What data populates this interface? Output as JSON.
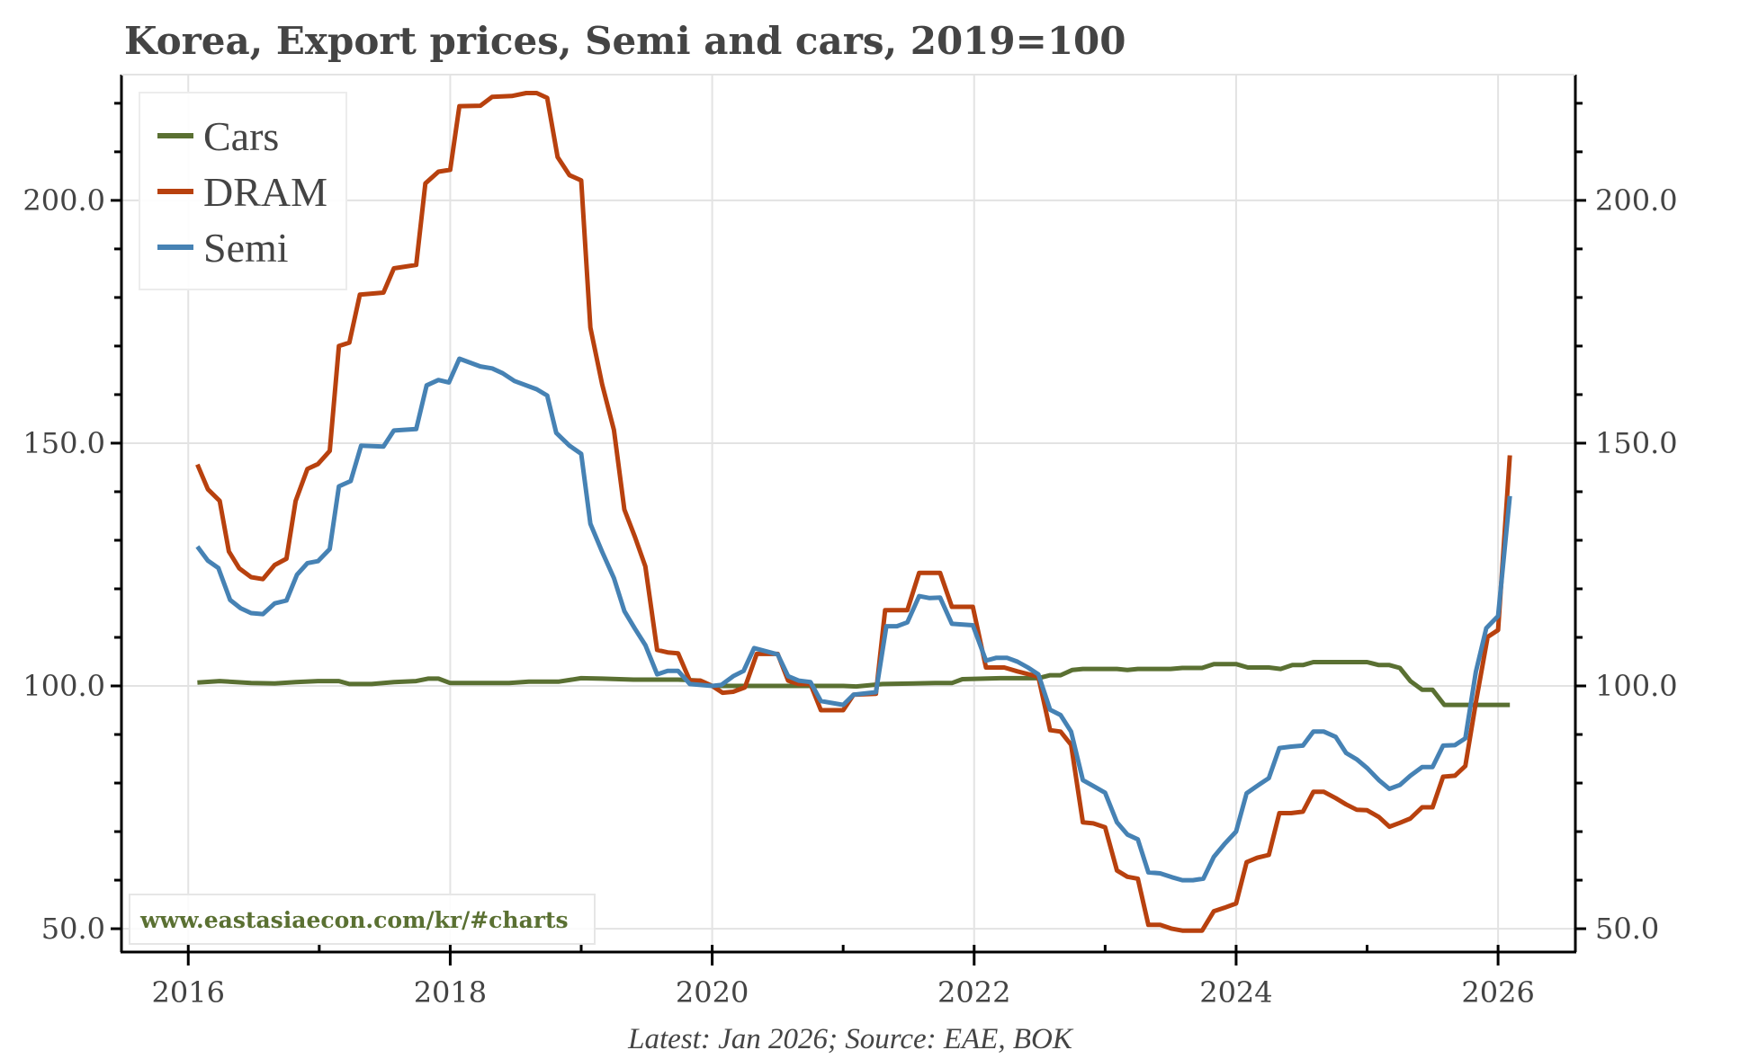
{
  "chart_data": {
    "type": "line",
    "title": "Korea, Export prices, Semi and cars, 2019=100",
    "source_note": "Latest: Jan 2026; Source: EAE, BOK",
    "watermark": "www.eastasiaecon.com/kr/#charts",
    "xlabel": "",
    "ylabel": "",
    "xlim": [
      2015.49,
      2026.59
    ],
    "ylim": [
      45.2,
      225.9
    ],
    "x_ticks": [
      2016,
      2018,
      2020,
      2022,
      2024,
      2026
    ],
    "x_tick_labels": [
      "2016",
      "2018",
      "2020",
      "2022",
      "2024",
      "2026"
    ],
    "x_minor_ticks": [
      2017,
      2019,
      2021,
      2023,
      2025
    ],
    "y_ticks": [
      50,
      100,
      150,
      200
    ],
    "y_tick_labels": [
      "50.0",
      "100.0",
      "150.0",
      "200.0"
    ],
    "y_minor_step": 10,
    "dual_y_axis": true,
    "grid": true,
    "legend_position": "top-left",
    "series": [
      {
        "name": "Cars",
        "color": "#5a7032",
        "points": [
          [
            2016.07,
            100.7
          ],
          [
            2016.24,
            101.0
          ],
          [
            2016.48,
            100.6
          ],
          [
            2016.66,
            100.5
          ],
          [
            2016.82,
            100.8
          ],
          [
            2016.99,
            101.0
          ],
          [
            2017.15,
            101.0
          ],
          [
            2017.23,
            100.4
          ],
          [
            2017.4,
            100.4
          ],
          [
            2017.57,
            100.8
          ],
          [
            2017.74,
            101.0
          ],
          [
            2017.83,
            101.5
          ],
          [
            2017.91,
            101.5
          ],
          [
            2018.0,
            100.6
          ],
          [
            2018.2,
            100.6
          ],
          [
            2018.45,
            100.6
          ],
          [
            2018.6,
            100.9
          ],
          [
            2018.83,
            100.9
          ],
          [
            2019.0,
            101.6
          ],
          [
            2019.16,
            101.5
          ],
          [
            2019.4,
            101.3
          ],
          [
            2019.74,
            101.3
          ],
          [
            2019.91,
            101.1
          ],
          [
            2020.0,
            100.0
          ],
          [
            2020.5,
            100.0
          ],
          [
            2021.0,
            100.0
          ],
          [
            2021.1,
            99.9
          ],
          [
            2021.3,
            100.4
          ],
          [
            2021.7,
            100.6
          ],
          [
            2021.83,
            100.6
          ],
          [
            2021.91,
            101.4
          ],
          [
            2022.2,
            101.6
          ],
          [
            2022.49,
            101.6
          ],
          [
            2022.58,
            102.2
          ],
          [
            2022.66,
            102.2
          ],
          [
            2022.75,
            103.3
          ],
          [
            2022.83,
            103.5
          ],
          [
            2023.09,
            103.5
          ],
          [
            2023.17,
            103.3
          ],
          [
            2023.25,
            103.5
          ],
          [
            2023.5,
            103.5
          ],
          [
            2023.59,
            103.7
          ],
          [
            2023.74,
            103.7
          ],
          [
            2023.83,
            104.5
          ],
          [
            2024.0,
            104.5
          ],
          [
            2024.09,
            103.8
          ],
          [
            2024.25,
            103.8
          ],
          [
            2024.34,
            103.5
          ],
          [
            2024.43,
            104.3
          ],
          [
            2024.51,
            104.3
          ],
          [
            2024.59,
            104.9
          ],
          [
            2025.0,
            104.9
          ],
          [
            2025.09,
            104.3
          ],
          [
            2025.17,
            104.3
          ],
          [
            2025.25,
            103.7
          ],
          [
            2025.33,
            101.0
          ],
          [
            2025.42,
            99.2
          ],
          [
            2025.5,
            99.2
          ],
          [
            2025.59,
            96.1
          ],
          [
            2026.09,
            96.1
          ]
        ]
      },
      {
        "name": "DRAM",
        "color": "#b8410e",
        "points": [
          [
            2016.07,
            145.6
          ],
          [
            2016.15,
            140.5
          ],
          [
            2016.24,
            138.1
          ],
          [
            2016.31,
            127.7
          ],
          [
            2016.39,
            124.2
          ],
          [
            2016.48,
            122.4
          ],
          [
            2016.57,
            122.0
          ],
          [
            2016.66,
            124.9
          ],
          [
            2016.75,
            126.2
          ],
          [
            2016.82,
            138.1
          ],
          [
            2016.91,
            144.7
          ],
          [
            2016.99,
            145.7
          ],
          [
            2017.08,
            148.4
          ],
          [
            2017.15,
            170.0
          ],
          [
            2017.23,
            170.7
          ],
          [
            2017.31,
            180.6
          ],
          [
            2017.49,
            181.0
          ],
          [
            2017.57,
            186.0
          ],
          [
            2017.74,
            186.7
          ],
          [
            2017.81,
            203.5
          ],
          [
            2017.91,
            205.9
          ],
          [
            2018.0,
            206.3
          ],
          [
            2018.07,
            219.4
          ],
          [
            2018.23,
            219.5
          ],
          [
            2018.32,
            221.3
          ],
          [
            2018.47,
            221.5
          ],
          [
            2018.58,
            222.1
          ],
          [
            2018.66,
            222.1
          ],
          [
            2018.74,
            221.1
          ],
          [
            2018.82,
            208.9
          ],
          [
            2018.91,
            205.2
          ],
          [
            2019.0,
            204.1
          ],
          [
            2019.07,
            173.8
          ],
          [
            2019.16,
            162.1
          ],
          [
            2019.25,
            152.7
          ],
          [
            2019.33,
            136.3
          ],
          [
            2019.41,
            130.7
          ],
          [
            2019.49,
            124.6
          ],
          [
            2019.58,
            107.4
          ],
          [
            2019.66,
            106.9
          ],
          [
            2019.74,
            106.7
          ],
          [
            2019.83,
            101.1
          ],
          [
            2019.91,
            101.1
          ],
          [
            2020.0,
            100.0
          ],
          [
            2020.08,
            98.6
          ],
          [
            2020.16,
            98.8
          ],
          [
            2020.25,
            99.7
          ],
          [
            2020.34,
            106.6
          ],
          [
            2020.5,
            106.6
          ],
          [
            2020.58,
            101.1
          ],
          [
            2020.66,
            100.4
          ],
          [
            2020.75,
            100.4
          ],
          [
            2020.83,
            95.0
          ],
          [
            2021.0,
            95.0
          ],
          [
            2021.08,
            98.2
          ],
          [
            2021.25,
            98.4
          ],
          [
            2021.32,
            115.6
          ],
          [
            2021.49,
            115.6
          ],
          [
            2021.58,
            123.3
          ],
          [
            2021.74,
            123.3
          ],
          [
            2021.83,
            116.3
          ],
          [
            2021.99,
            116.3
          ],
          [
            2022.09,
            103.8
          ],
          [
            2022.23,
            103.8
          ],
          [
            2022.33,
            103.0
          ],
          [
            2022.49,
            101.9
          ],
          [
            2022.58,
            90.9
          ],
          [
            2022.66,
            90.6
          ],
          [
            2022.74,
            87.9
          ],
          [
            2022.83,
            71.9
          ],
          [
            2022.91,
            71.7
          ],
          [
            2023.0,
            70.9
          ],
          [
            2023.09,
            62.0
          ],
          [
            2023.17,
            60.7
          ],
          [
            2023.25,
            60.3
          ],
          [
            2023.33,
            50.8
          ],
          [
            2023.42,
            50.8
          ],
          [
            2023.51,
            50.0
          ],
          [
            2023.59,
            49.6
          ],
          [
            2023.74,
            49.6
          ],
          [
            2023.83,
            53.6
          ],
          [
            2023.91,
            54.3
          ],
          [
            2024.0,
            55.2
          ],
          [
            2024.08,
            63.7
          ],
          [
            2024.16,
            64.6
          ],
          [
            2024.25,
            65.2
          ],
          [
            2024.33,
            73.8
          ],
          [
            2024.42,
            73.8
          ],
          [
            2024.51,
            74.1
          ],
          [
            2024.59,
            78.2
          ],
          [
            2024.67,
            78.2
          ],
          [
            2024.76,
            76.9
          ],
          [
            2024.84,
            75.6
          ],
          [
            2024.92,
            74.5
          ],
          [
            2025.0,
            74.4
          ],
          [
            2025.09,
            73.0
          ],
          [
            2025.17,
            71.0
          ],
          [
            2025.25,
            71.8
          ],
          [
            2025.33,
            72.7
          ],
          [
            2025.42,
            75.0
          ],
          [
            2025.5,
            75.0
          ],
          [
            2025.58,
            81.3
          ],
          [
            2025.67,
            81.5
          ],
          [
            2025.75,
            83.5
          ],
          [
            2025.83,
            96.6
          ],
          [
            2025.92,
            110.1
          ],
          [
            2026.0,
            111.5
          ],
          [
            2026.09,
            147.5
          ]
        ]
      },
      {
        "name": "Semi",
        "color": "#4682b4",
        "points": [
          [
            2016.07,
            128.7
          ],
          [
            2016.15,
            125.8
          ],
          [
            2016.23,
            124.3
          ],
          [
            2016.32,
            117.7
          ],
          [
            2016.4,
            116.0
          ],
          [
            2016.48,
            115.0
          ],
          [
            2016.57,
            114.8
          ],
          [
            2016.66,
            117.0
          ],
          [
            2016.75,
            117.6
          ],
          [
            2016.83,
            122.9
          ],
          [
            2016.91,
            125.3
          ],
          [
            2016.99,
            125.7
          ],
          [
            2017.08,
            128.2
          ],
          [
            2017.15,
            141.1
          ],
          [
            2017.24,
            142.2
          ],
          [
            2017.32,
            149.5
          ],
          [
            2017.49,
            149.3
          ],
          [
            2017.57,
            152.6
          ],
          [
            2017.74,
            152.9
          ],
          [
            2017.82,
            161.9
          ],
          [
            2017.91,
            163.0
          ],
          [
            2017.99,
            162.5
          ],
          [
            2018.07,
            167.4
          ],
          [
            2018.23,
            165.8
          ],
          [
            2018.32,
            165.4
          ],
          [
            2018.4,
            164.4
          ],
          [
            2018.49,
            162.8
          ],
          [
            2018.66,
            161.1
          ],
          [
            2018.74,
            159.8
          ],
          [
            2018.81,
            152.1
          ],
          [
            2018.91,
            149.5
          ],
          [
            2019.0,
            147.8
          ],
          [
            2019.07,
            133.4
          ],
          [
            2019.16,
            127.6
          ],
          [
            2019.25,
            122.2
          ],
          [
            2019.33,
            115.4
          ],
          [
            2019.41,
            111.8
          ],
          [
            2019.49,
            108.4
          ],
          [
            2019.58,
            102.4
          ],
          [
            2019.66,
            103.1
          ],
          [
            2019.74,
            103.1
          ],
          [
            2019.83,
            100.4
          ],
          [
            2019.91,
            100.2
          ],
          [
            2020.0,
            100.0
          ],
          [
            2020.07,
            100.2
          ],
          [
            2020.16,
            102.0
          ],
          [
            2020.24,
            103.1
          ],
          [
            2020.32,
            107.8
          ],
          [
            2020.5,
            106.5
          ],
          [
            2020.58,
            102.0
          ],
          [
            2020.66,
            101.1
          ],
          [
            2020.75,
            100.8
          ],
          [
            2020.83,
            96.9
          ],
          [
            2021.0,
            96.1
          ],
          [
            2021.08,
            98.2
          ],
          [
            2021.25,
            98.7
          ],
          [
            2021.33,
            112.3
          ],
          [
            2021.41,
            112.3
          ],
          [
            2021.49,
            113.1
          ],
          [
            2021.58,
            118.5
          ],
          [
            2021.66,
            118.1
          ],
          [
            2021.74,
            118.2
          ],
          [
            2021.83,
            112.8
          ],
          [
            2021.99,
            112.5
          ],
          [
            2022.09,
            105.2
          ],
          [
            2022.17,
            105.8
          ],
          [
            2022.25,
            105.8
          ],
          [
            2022.33,
            105.0
          ],
          [
            2022.41,
            103.8
          ],
          [
            2022.49,
            102.4
          ],
          [
            2022.58,
            95.1
          ],
          [
            2022.66,
            94.0
          ],
          [
            2022.74,
            90.6
          ],
          [
            2022.83,
            80.6
          ],
          [
            2022.91,
            79.4
          ],
          [
            2023.0,
            78.0
          ],
          [
            2023.09,
            71.9
          ],
          [
            2023.17,
            69.4
          ],
          [
            2023.25,
            68.4
          ],
          [
            2023.33,
            61.6
          ],
          [
            2023.42,
            61.4
          ],
          [
            2023.51,
            60.6
          ],
          [
            2023.59,
            60.0
          ],
          [
            2023.67,
            60.0
          ],
          [
            2023.75,
            60.3
          ],
          [
            2023.83,
            64.8
          ],
          [
            2023.91,
            67.4
          ],
          [
            2024.0,
            70.0
          ],
          [
            2024.08,
            77.9
          ],
          [
            2024.16,
            79.4
          ],
          [
            2024.25,
            81.0
          ],
          [
            2024.33,
            87.2
          ],
          [
            2024.42,
            87.5
          ],
          [
            2024.51,
            87.7
          ],
          [
            2024.59,
            90.6
          ],
          [
            2024.67,
            90.6
          ],
          [
            2024.76,
            89.5
          ],
          [
            2024.84,
            86.2
          ],
          [
            2024.92,
            84.9
          ],
          [
            2025.0,
            83.1
          ],
          [
            2025.09,
            80.6
          ],
          [
            2025.17,
            78.8
          ],
          [
            2025.25,
            79.6
          ],
          [
            2025.33,
            81.5
          ],
          [
            2025.42,
            83.3
          ],
          [
            2025.5,
            83.3
          ],
          [
            2025.58,
            87.7
          ],
          [
            2025.67,
            87.8
          ],
          [
            2025.75,
            89.2
          ],
          [
            2025.83,
            102.9
          ],
          [
            2025.91,
            111.9
          ],
          [
            2026.0,
            114.4
          ],
          [
            2026.09,
            139.1
          ]
        ]
      }
    ]
  }
}
